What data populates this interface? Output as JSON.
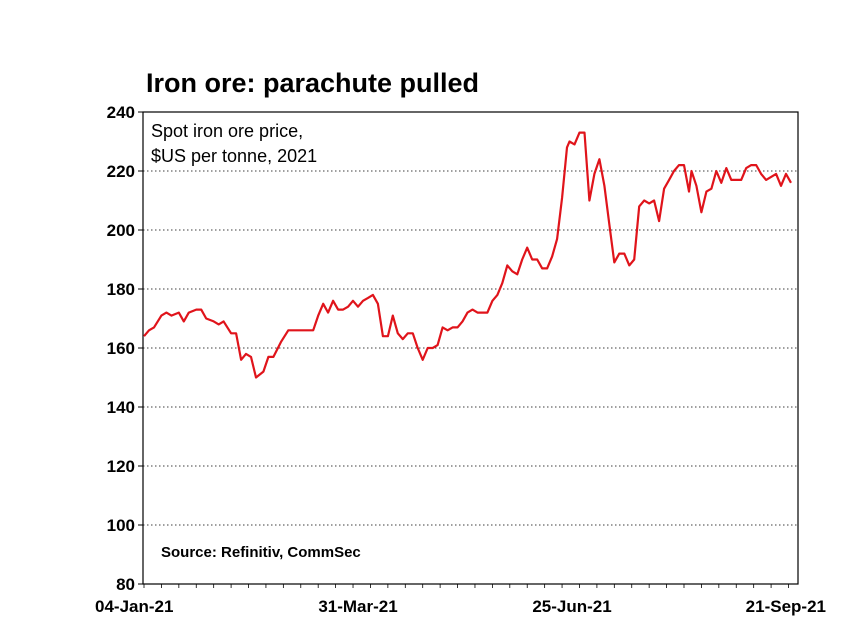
{
  "chart_data": {
    "type": "line",
    "title": "Iron ore: parachute pulled",
    "annotation": [
      "Spot iron ore price,",
      "$US per tonne, 2021"
    ],
    "source": "Source: Refinitiv, CommSec",
    "xlabel": "",
    "ylabel": "",
    "ylim": [
      80,
      240
    ],
    "y_ticks": [
      80,
      100,
      120,
      140,
      160,
      180,
      200,
      220,
      240
    ],
    "x_range": [
      "2021-01-04",
      "2021-09-21"
    ],
    "x_tick_labels": [
      {
        "date": "2021-01-04",
        "label": "04-Jan-21"
      },
      {
        "date": "2021-03-31",
        "label": "31-Mar-21"
      },
      {
        "date": "2021-06-25",
        "label": "25-Jun-21"
      },
      {
        "date": "2021-09-21",
        "label": "21-Sep-21"
      }
    ],
    "grid": true,
    "colors": {
      "series": "#e0141b"
    },
    "series": [
      {
        "values": [
          [
            "2021-01-04",
            164
          ],
          [
            "2021-01-06",
            166
          ],
          [
            "2021-01-08",
            167
          ],
          [
            "2021-01-11",
            171
          ],
          [
            "2021-01-13",
            172
          ],
          [
            "2021-01-15",
            171
          ],
          [
            "2021-01-18",
            172
          ],
          [
            "2021-01-20",
            169
          ],
          [
            "2021-01-22",
            172
          ],
          [
            "2021-01-25",
            173
          ],
          [
            "2021-01-27",
            173
          ],
          [
            "2021-01-29",
            170
          ],
          [
            "2021-02-01",
            169
          ],
          [
            "2021-02-03",
            168
          ],
          [
            "2021-02-05",
            169
          ],
          [
            "2021-02-08",
            165
          ],
          [
            "2021-02-10",
            165
          ],
          [
            "2021-02-12",
            156
          ],
          [
            "2021-02-14",
            158
          ],
          [
            "2021-02-16",
            157
          ],
          [
            "2021-02-18",
            150
          ],
          [
            "2021-02-21",
            152
          ],
          [
            "2021-02-23",
            157
          ],
          [
            "2021-02-25",
            157
          ],
          [
            "2021-02-28",
            162
          ],
          [
            "2021-03-03",
            166
          ],
          [
            "2021-03-05",
            166
          ],
          [
            "2021-03-08",
            166
          ],
          [
            "2021-03-11",
            166
          ],
          [
            "2021-03-13",
            166
          ],
          [
            "2021-03-15",
            171
          ],
          [
            "2021-03-17",
            175
          ],
          [
            "2021-03-19",
            172
          ],
          [
            "2021-03-21",
            176
          ],
          [
            "2021-03-23",
            173
          ],
          [
            "2021-03-25",
            173
          ],
          [
            "2021-03-27",
            174
          ],
          [
            "2021-03-29",
            176
          ],
          [
            "2021-03-31",
            174
          ],
          [
            "2021-04-02",
            176
          ],
          [
            "2021-04-04",
            177
          ],
          [
            "2021-04-06",
            178
          ],
          [
            "2021-04-08",
            175
          ],
          [
            "2021-04-10",
            164
          ],
          [
            "2021-04-12",
            164
          ],
          [
            "2021-04-14",
            171
          ],
          [
            "2021-04-16",
            165
          ],
          [
            "2021-04-18",
            163
          ],
          [
            "2021-04-20",
            165
          ],
          [
            "2021-04-22",
            165
          ],
          [
            "2021-04-24",
            160
          ],
          [
            "2021-04-26",
            156
          ],
          [
            "2021-04-28",
            160
          ],
          [
            "2021-04-30",
            160
          ],
          [
            "2021-05-02",
            161
          ],
          [
            "2021-05-04",
            167
          ],
          [
            "2021-05-06",
            166
          ],
          [
            "2021-05-08",
            167
          ],
          [
            "2021-05-10",
            167
          ],
          [
            "2021-05-12",
            169
          ],
          [
            "2021-05-14",
            172
          ],
          [
            "2021-05-16",
            173
          ],
          [
            "2021-05-18",
            172
          ],
          [
            "2021-05-20",
            172
          ],
          [
            "2021-05-22",
            172
          ],
          [
            "2021-05-24",
            176
          ],
          [
            "2021-05-26",
            178
          ],
          [
            "2021-05-28",
            182
          ],
          [
            "2021-05-30",
            188
          ],
          [
            "2021-06-01",
            186
          ],
          [
            "2021-06-03",
            185
          ],
          [
            "2021-06-05",
            190
          ],
          [
            "2021-06-07",
            194
          ],
          [
            "2021-06-09",
            190
          ],
          [
            "2021-06-11",
            190
          ],
          [
            "2021-06-13",
            187
          ],
          [
            "2021-06-15",
            187
          ],
          [
            "2021-06-17",
            191
          ],
          [
            "2021-06-19",
            197
          ],
          [
            "2021-06-21",
            211
          ],
          [
            "2021-06-23",
            228
          ],
          [
            "2021-06-24",
            230
          ],
          [
            "2021-06-26",
            229
          ],
          [
            "2021-06-28",
            233
          ],
          [
            "2021-06-30",
            233
          ],
          [
            "2021-07-02",
            210
          ],
          [
            "2021-07-04",
            219
          ],
          [
            "2021-07-06",
            224
          ],
          [
            "2021-07-08",
            215
          ],
          [
            "2021-07-10",
            202
          ],
          [
            "2021-07-12",
            189
          ],
          [
            "2021-07-14",
            192
          ],
          [
            "2021-07-16",
            192
          ],
          [
            "2021-07-18",
            188
          ],
          [
            "2021-07-20",
            190
          ],
          [
            "2021-07-22",
            208
          ],
          [
            "2021-07-24",
            210
          ],
          [
            "2021-07-26",
            209
          ],
          [
            "2021-07-28",
            210
          ],
          [
            "2021-07-30",
            203
          ],
          [
            "2021-08-01",
            214
          ],
          [
            "2021-08-03",
            217
          ],
          [
            "2021-08-05",
            220
          ],
          [
            "2021-08-07",
            222
          ],
          [
            "2021-08-09",
            222
          ],
          [
            "2021-08-11",
            213
          ],
          [
            "2021-08-12",
            220
          ],
          [
            "2021-08-14",
            215
          ],
          [
            "2021-08-16",
            206
          ],
          [
            "2021-08-18",
            213
          ],
          [
            "2021-08-20",
            214
          ],
          [
            "2021-08-22",
            220
          ],
          [
            "2021-08-24",
            216
          ],
          [
            "2021-08-26",
            221
          ],
          [
            "2021-08-28",
            217
          ],
          [
            "2021-08-30",
            217
          ],
          [
            "2021-09-01",
            217
          ],
          [
            "2021-09-03",
            221
          ],
          [
            "2021-09-05",
            222
          ],
          [
            "2021-09-07",
            222
          ],
          [
            "2021-09-09",
            219
          ],
          [
            "2021-09-11",
            217
          ],
          [
            "2021-09-13",
            218
          ],
          [
            "2021-09-15",
            219
          ],
          [
            "2021-09-17",
            215
          ],
          [
            "2021-09-19",
            219
          ],
          [
            "2021-09-21",
            216
          ]
        ]
      }
    ]
  }
}
